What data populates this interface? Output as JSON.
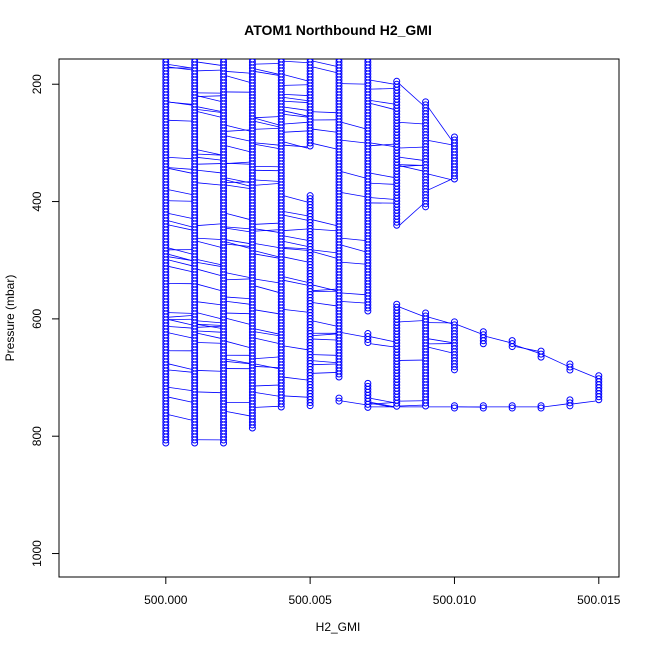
{
  "chart_data": {
    "type": "scatter",
    "title": "ATOM1 Northbound H2_GMI",
    "xlabel": "H2_GMI",
    "ylabel": "Pressure (mbar)",
    "xlim": [
      499.9963,
      500.0157
    ],
    "ylim": [
      1040,
      157
    ],
    "y_reversed": true,
    "x_ticks": [
      {
        "value": 500.0,
        "label": "500.000"
      },
      {
        "value": 500.005,
        "label": "500.005"
      },
      {
        "value": 500.01,
        "label": "500.010"
      },
      {
        "value": 500.015,
        "label": "500.015"
      }
    ],
    "y_ticks": [
      {
        "value": 200,
        "label": "200"
      },
      {
        "value": 400,
        "label": "400"
      },
      {
        "value": 600,
        "label": "600"
      },
      {
        "value": 800,
        "label": "800"
      },
      {
        "value": 1000,
        "label": "1000"
      }
    ],
    "marker": "open-circle",
    "color": "#0000ff",
    "grid": false,
    "legend": "none",
    "columns": [
      {
        "x": 500.0,
        "p_ranges": [
          [
            157,
            812
          ]
        ]
      },
      {
        "x": 500.001,
        "p_ranges": [
          [
            157,
            812
          ]
        ]
      },
      {
        "x": 500.002,
        "p_ranges": [
          [
            157,
            812
          ]
        ]
      },
      {
        "x": 500.003,
        "p_ranges": [
          [
            157,
            790
          ]
        ]
      },
      {
        "x": 500.004,
        "p_ranges": [
          [
            157,
            752
          ]
        ]
      },
      {
        "x": 500.005,
        "p_ranges": [
          [
            157,
            310
          ],
          [
            390,
            752
          ]
        ]
      },
      {
        "x": 500.006,
        "p_ranges": [
          [
            157,
            700
          ],
          [
            735,
            745
          ]
        ]
      },
      {
        "x": 500.007,
        "p_ranges": [
          [
            157,
            590
          ],
          [
            625,
            645
          ],
          [
            710,
            752
          ]
        ]
      },
      {
        "x": 500.008,
        "p_ranges": [
          [
            195,
            445
          ],
          [
            575,
            752
          ]
        ]
      },
      {
        "x": 500.009,
        "p_ranges": [
          [
            230,
            410
          ],
          [
            590,
            752
          ]
        ]
      },
      {
        "x": 500.01,
        "p_ranges": [
          [
            290,
            365
          ],
          [
            605,
            690
          ],
          [
            748,
            752
          ]
        ]
      },
      {
        "x": 500.011,
        "p_ranges": [
          [
            622,
            645
          ],
          [
            748,
            752
          ]
        ]
      },
      {
        "x": 500.012,
        "p_ranges": [
          [
            637,
            650
          ],
          [
            748,
            752
          ]
        ]
      },
      {
        "x": 500.013,
        "p_ranges": [
          [
            655,
            670
          ],
          [
            748,
            752
          ]
        ]
      },
      {
        "x": 500.014,
        "p_ranges": [
          [
            677,
            688
          ],
          [
            738,
            752
          ]
        ]
      },
      {
        "x": 500.015,
        "p_ranges": [
          [
            697,
            742
          ]
        ]
      }
    ]
  }
}
